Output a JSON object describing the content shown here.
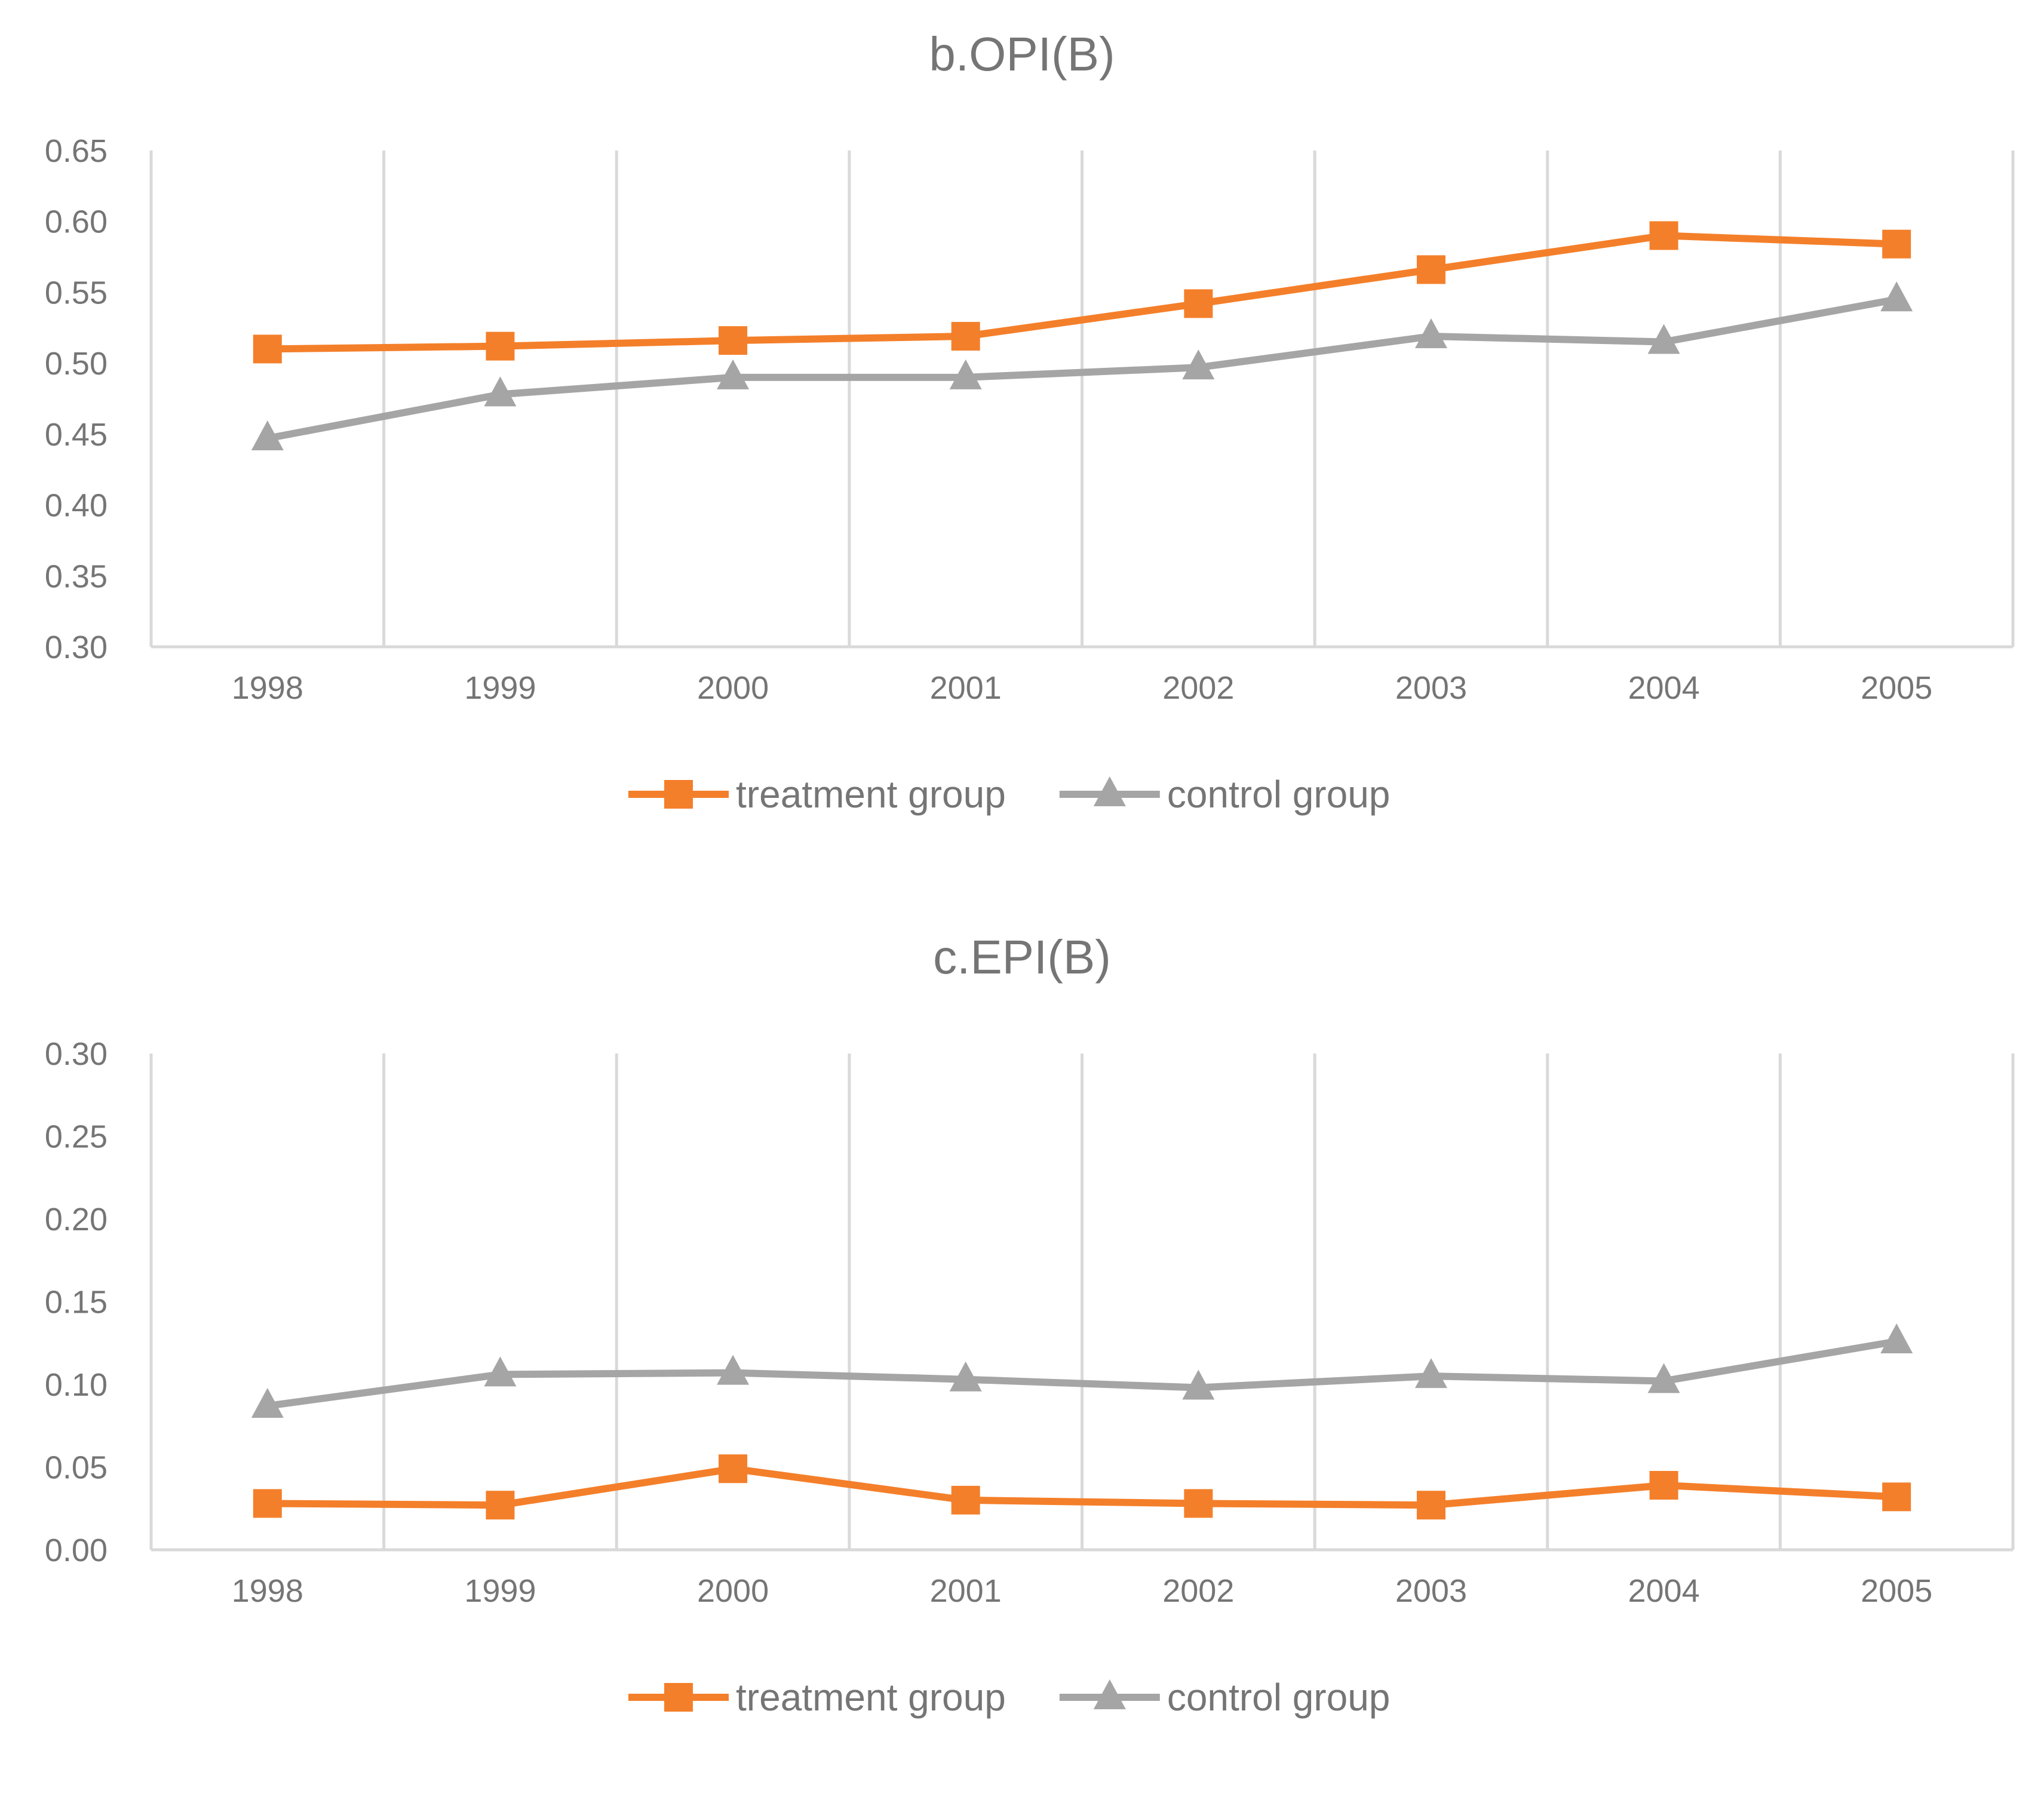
{
  "chart_data": [
    {
      "type": "line",
      "title": "b.OPI(B)",
      "categories": [
        "1998",
        "1999",
        "2000",
        "2001",
        "2002",
        "2003",
        "2004",
        "2005"
      ],
      "ylim": [
        0.3,
        0.65
      ],
      "yticks": [
        "0.30",
        "0.35",
        "0.40",
        "0.45",
        "0.50",
        "0.55",
        "0.60",
        "0.65"
      ],
      "xlabel": "",
      "ylabel": "",
      "legend_position": "bottom",
      "series": [
        {
          "name": "treatment group",
          "color": "#F47F2A",
          "marker": "square",
          "values": [
            0.51,
            0.512,
            0.516,
            0.519,
            0.542,
            0.566,
            0.59,
            0.584
          ]
        },
        {
          "name": "control group",
          "color": "#A5A5A5",
          "marker": "triangle",
          "values": [
            0.447,
            0.478,
            0.49,
            0.49,
            0.497,
            0.519,
            0.515,
            0.545
          ]
        }
      ]
    },
    {
      "type": "line",
      "title": "c.EPI(B)",
      "categories": [
        "1998",
        "1999",
        "2000",
        "2001",
        "2002",
        "2003",
        "2004",
        "2005"
      ],
      "ylim": [
        0.0,
        0.3
      ],
      "yticks": [
        "0.00",
        "0.05",
        "0.10",
        "0.15",
        "0.20",
        "0.25",
        "0.30"
      ],
      "xlabel": "",
      "ylabel": "",
      "legend_position": "bottom",
      "series": [
        {
          "name": "treatment group",
          "color": "#F47F2A",
          "marker": "square",
          "values": [
            0.028,
            0.027,
            0.049,
            0.03,
            0.028,
            0.027,
            0.039,
            0.032
          ]
        },
        {
          "name": "control group",
          "color": "#A5A5A5",
          "marker": "triangle",
          "values": [
            0.087,
            0.106,
            0.107,
            0.103,
            0.098,
            0.105,
            0.102,
            0.126
          ]
        }
      ]
    }
  ]
}
